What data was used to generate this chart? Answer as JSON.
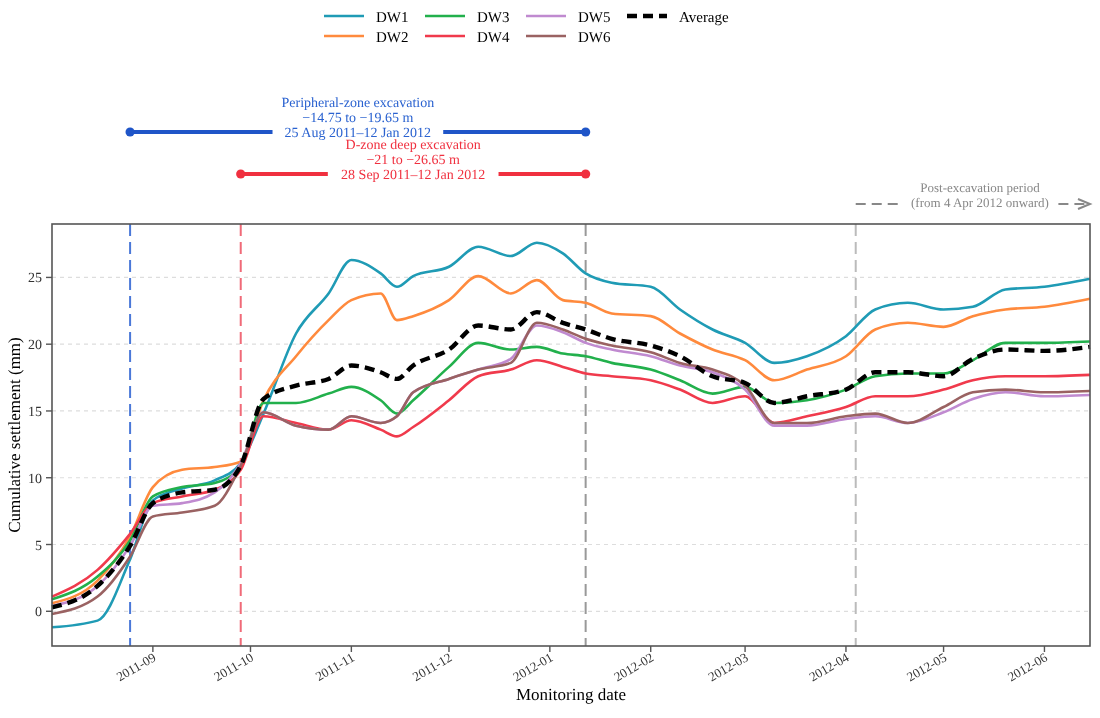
{
  "chart_data": {
    "type": "line",
    "xlabel": "Monitoring date",
    "ylabel": "Cumulative settlement (mm)",
    "x": [
      "2011-08-01",
      "2011-08-15",
      "2011-08-25",
      "2011-09-01",
      "2011-09-10",
      "2011-09-20",
      "2011-09-28",
      "2011-10-05",
      "2011-10-15",
      "2011-10-25",
      "2011-11-01",
      "2011-11-10",
      "2011-11-15",
      "2011-11-20",
      "2011-12-01",
      "2011-12-10",
      "2011-12-20",
      "2011-12-28",
      "2012-01-05",
      "2012-01-12",
      "2012-01-20",
      "2012-02-01",
      "2012-02-10",
      "2012-02-20",
      "2012-03-01",
      "2012-03-10",
      "2012-03-20",
      "2012-04-01",
      "2012-04-10",
      "2012-04-20",
      "2012-05-01",
      "2012-05-10",
      "2012-05-20",
      "2012-06-01",
      "2012-06-15"
    ],
    "series": [
      {
        "name": "DW1",
        "color": "#1f9bb5",
        "values": [
          -1.2,
          -0.7,
          3.9,
          8.3,
          9.2,
          9.8,
          11.1,
          14.8,
          20.8,
          23.8,
          26.3,
          25.3,
          24.3,
          25.1,
          25.8,
          27.3,
          26.6,
          27.6,
          26.8,
          25.3,
          24.6,
          24.3,
          22.6,
          21.1,
          20.1,
          18.6,
          19.1,
          20.6,
          22.6,
          23.1,
          22.6,
          22.8,
          24.1,
          24.3,
          24.9
        ]
      },
      {
        "name": "DW2",
        "color": "#ff8a3d",
        "values": [
          0.6,
          2.3,
          5.6,
          9.3,
          10.6,
          10.8,
          11.2,
          15.8,
          19.1,
          21.8,
          23.3,
          23.8,
          21.8,
          22.1,
          23.3,
          25.1,
          23.8,
          24.8,
          23.3,
          23.1,
          22.3,
          22.1,
          20.8,
          19.6,
          18.8,
          17.3,
          18.1,
          19.1,
          21.1,
          21.6,
          21.3,
          22.1,
          22.6,
          22.8,
          23.4
        ]
      },
      {
        "name": "DW3",
        "color": "#22b04c",
        "values": [
          0.9,
          2.6,
          5.3,
          8.6,
          9.3,
          9.6,
          10.8,
          15.6,
          15.6,
          16.3,
          16.8,
          15.8,
          14.8,
          15.8,
          18.3,
          20.1,
          19.6,
          19.8,
          19.3,
          19.1,
          18.6,
          18.1,
          17.3,
          16.3,
          16.8,
          15.6,
          15.8,
          16.6,
          17.6,
          17.8,
          17.8,
          18.8,
          20.1,
          20.1,
          20.2
        ]
      },
      {
        "name": "DW4",
        "color": "#f03a4c",
        "values": [
          1.1,
          3.1,
          5.8,
          8.1,
          8.6,
          9.1,
          10.6,
          14.6,
          14.1,
          13.6,
          14.3,
          13.6,
          13.1,
          13.8,
          15.8,
          17.6,
          18.1,
          18.8,
          18.3,
          17.8,
          17.6,
          17.3,
          16.6,
          15.6,
          16.1,
          14.1,
          14.6,
          15.3,
          16.1,
          16.1,
          16.6,
          17.3,
          17.6,
          17.6,
          17.7
        ]
      },
      {
        "name": "DW5",
        "color": "#c08ad0",
        "values": [
          0.4,
          1.9,
          4.9,
          7.9,
          8.1,
          8.9,
          11.1,
          14.9,
          13.9,
          13.6,
          14.6,
          14.1,
          14.6,
          16.4,
          17.4,
          18.1,
          18.9,
          21.4,
          20.9,
          20.1,
          19.6,
          19.1,
          18.4,
          17.9,
          16.6,
          13.9,
          13.9,
          14.4,
          14.6,
          14.1,
          14.9,
          15.9,
          16.4,
          16.1,
          16.2
        ]
      },
      {
        "name": "DW6",
        "color": "#9a6262",
        "values": [
          -0.2,
          1.1,
          4.1,
          7.1,
          7.4,
          7.9,
          10.9,
          14.9,
          13.9,
          13.6,
          14.6,
          14.1,
          14.6,
          16.4,
          17.4,
          18.1,
          18.6,
          21.6,
          21.1,
          20.4,
          19.9,
          19.4,
          18.6,
          18.1,
          16.9,
          14.1,
          14.1,
          14.6,
          14.8,
          14.1,
          15.3,
          16.4,
          16.6,
          16.4,
          16.5
        ]
      },
      {
        "name": "Average",
        "color": "#000000",
        "line_style": "dashed",
        "values": [
          0.3,
          1.9,
          4.9,
          8.1,
          8.9,
          9.1,
          10.9,
          15.9,
          16.9,
          17.4,
          18.4,
          17.9,
          17.4,
          18.4,
          19.6,
          21.4,
          21.1,
          22.4,
          21.6,
          21.1,
          20.4,
          19.9,
          19.1,
          17.6,
          17.1,
          15.6,
          16.1,
          16.6,
          17.9,
          17.9,
          17.6,
          18.9,
          19.6,
          19.5,
          19.8
        ]
      }
    ],
    "xlim": [
      "2011-08-01",
      "2012-06-15"
    ],
    "xticks": [
      {
        "value": "2011-09-01",
        "label": "2011-09"
      },
      {
        "value": "2011-10-01",
        "label": "2011-10"
      },
      {
        "value": "2011-11-01",
        "label": "2011-11"
      },
      {
        "value": "2011-12-01",
        "label": "2011-12"
      },
      {
        "value": "2012-01-01",
        "label": "2012-01"
      },
      {
        "value": "2012-02-01",
        "label": "2012-02"
      },
      {
        "value": "2012-03-01",
        "label": "2012-03"
      },
      {
        "value": "2012-04-01",
        "label": "2012-04"
      },
      {
        "value": "2012-05-01",
        "label": "2012-05"
      },
      {
        "value": "2012-06-01",
        "label": "2012-06"
      }
    ],
    "ylim": [
      -2.6,
      29
    ],
    "yticks": [
      0,
      5,
      10,
      15,
      20,
      25
    ],
    "grid": "y",
    "legend": "top",
    "line_style": "solid",
    "marker": "none",
    "ref_lines": [
      {
        "axis": "x",
        "value": "2011-08-25",
        "label": null,
        "color": "#4a78d8",
        "line_style": "dashed"
      },
      {
        "axis": "x",
        "value": "2011-09-28",
        "label": null,
        "color": "#f06a78",
        "line_style": "dashed"
      },
      {
        "axis": "x",
        "value": "2012-01-12",
        "label": null,
        "color": "#999999",
        "line_style": "dashed"
      },
      {
        "axis": "x",
        "value": "2012-04-04",
        "label": null,
        "color": "#bbbbbb",
        "line_style": "dashed"
      }
    ],
    "annotations": [
      "Peripheral-zone excavation\n−14.75 to −19.65 m\n25 Aug 2011–12 Jan 2012",
      "D-zone deep excavation\n−21 to −26.65 m\n28 Sep 2011–12 Jan 2012",
      "Post-excavation period\n(from 4 Apr 2012 onward)"
    ]
  }
}
